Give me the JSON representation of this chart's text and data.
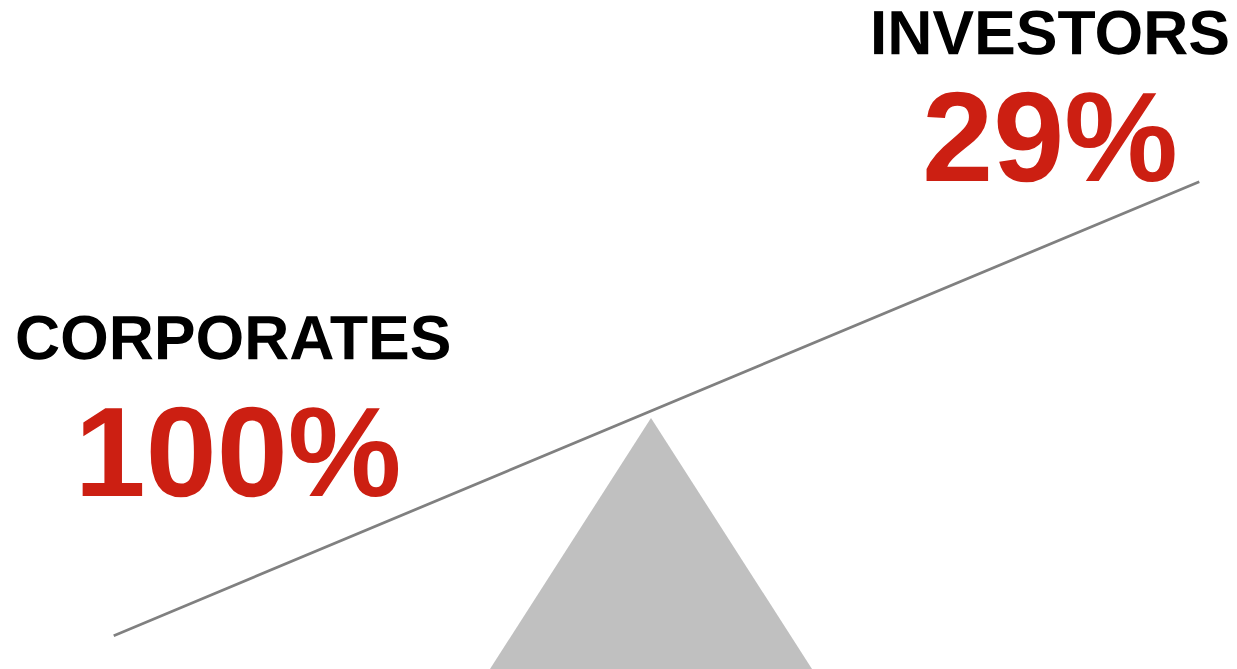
{
  "chart_data": {
    "type": "other",
    "categories": [
      "CORPORATES",
      "INVESTORS"
    ],
    "values": [
      100,
      29
    ],
    "colors": [
      "#cc1f12",
      "#cc1f12"
    ],
    "value_labels": [
      "100%",
      "29%"
    ]
  }
}
